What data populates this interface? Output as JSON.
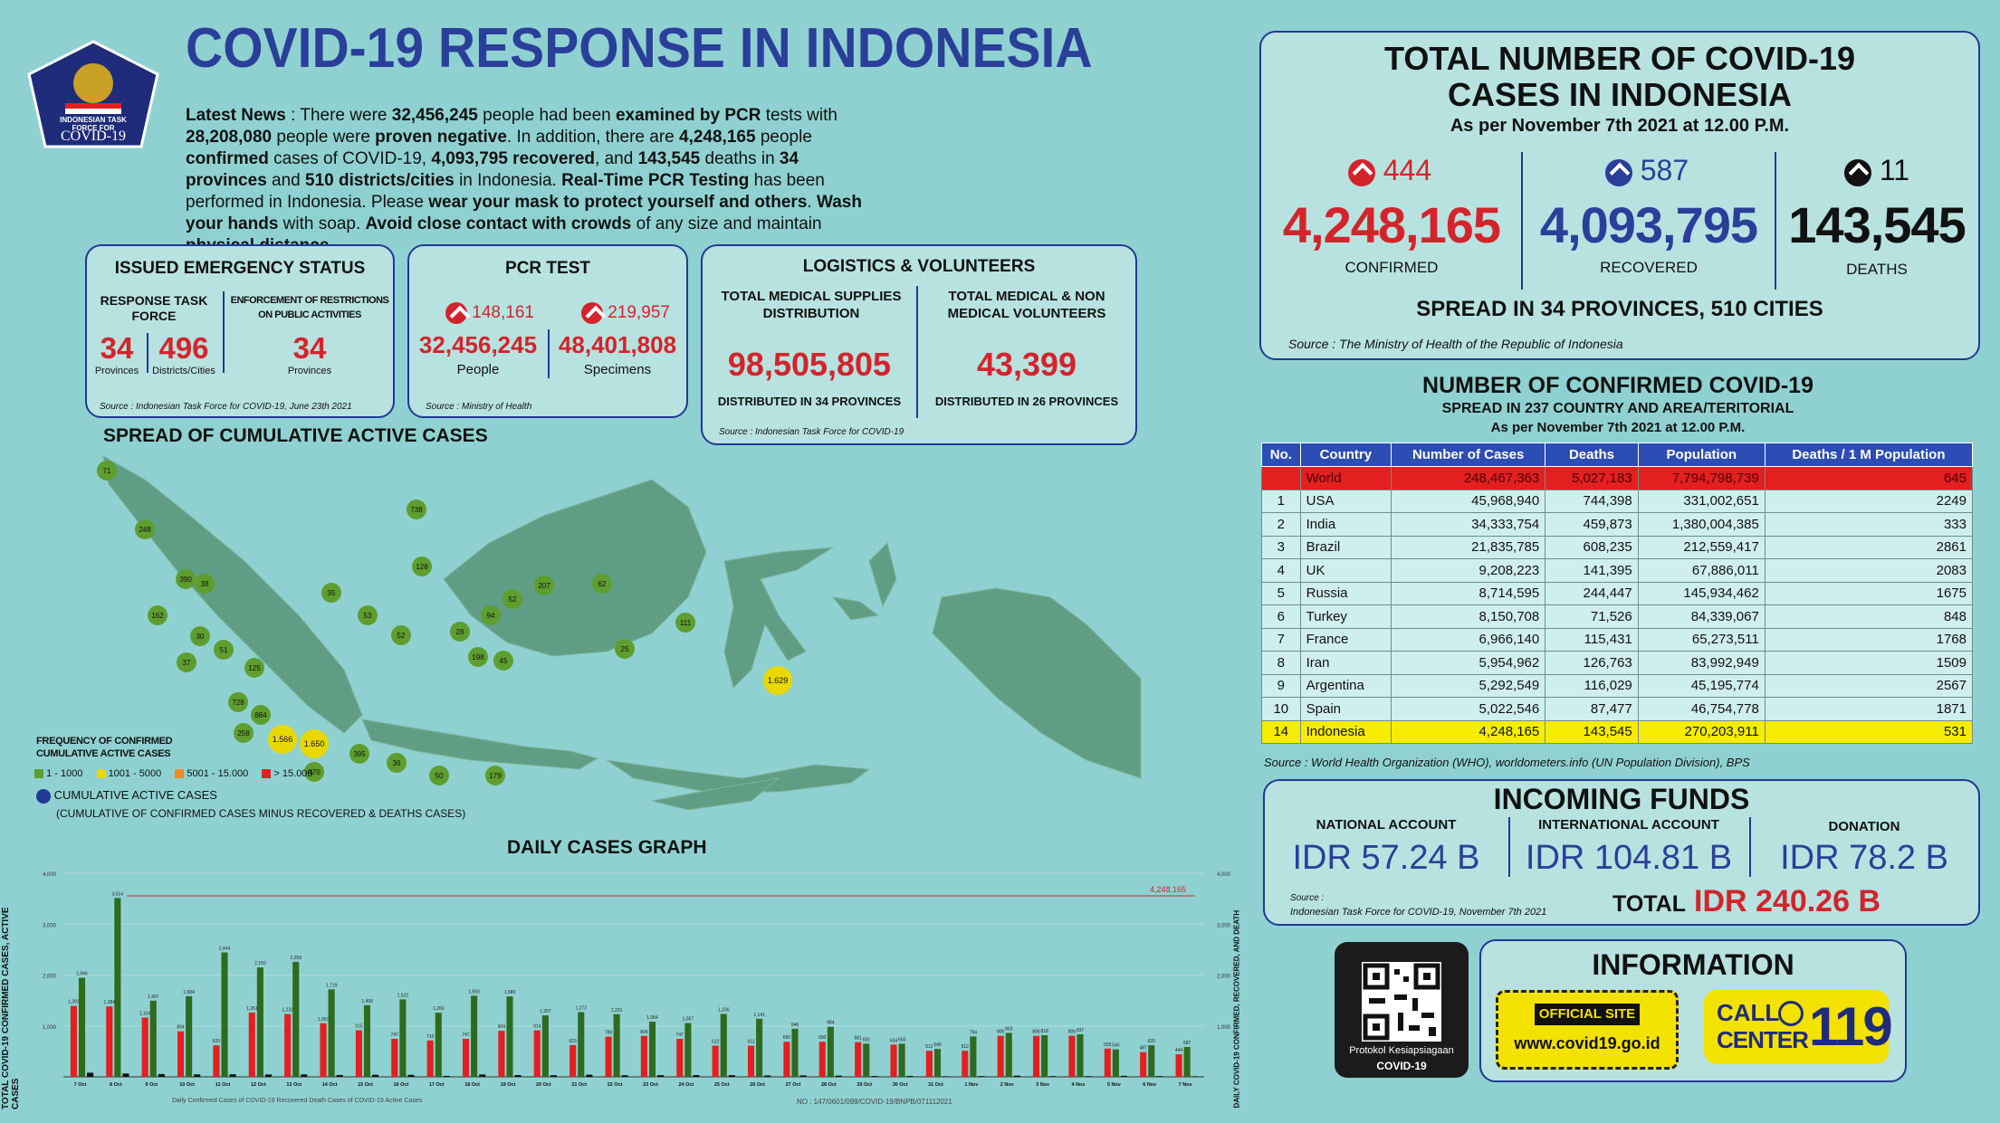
{
  "header": {
    "title": "COVID-19 RESPONSE IN INDONESIA",
    "logo_text_1": "INDONESIAN TASK FORCE FOR",
    "logo_text_2": "COVID-19"
  },
  "news": {
    "p1": "Latest News",
    "p2": " : There were ",
    "p3": "32,456,245",
    "p4": " people had been ",
    "p5": "examined by PCR",
    "p6": " tests with ",
    "p7": "28,208,080",
    "p8": " people were ",
    "p9": "proven negative",
    "p10": ". In addition, there are ",
    "p11": "4,248,165",
    "p12": " people ",
    "p13": "confirmed",
    "p14": " cases of COVID-19, ",
    "p15": "4,093,795 recovered",
    "p16": ", and ",
    "p17": "143,545",
    "p18": " deaths in ",
    "p19": "34 provinces",
    "p20": " and ",
    "p21": "510 districts/cities",
    "p22": " in Indonesia. ",
    "p23": "Real-Time PCR Testing",
    "p24": " has been performed in Indonesia. Please ",
    "p25": "wear your mask to protect yourself and others",
    "p26": ". ",
    "p27": "Wash your hands",
    "p28": " with soap. ",
    "p29": "Avoid close contact with crowds",
    "p30": " of any size and maintain ",
    "p31": "physical distance",
    "p32": "."
  },
  "emergency": {
    "title": "ISSUED EMERGENCY STATUS",
    "col1_head": "RESPONSE TASK FORCE",
    "col2_head": "ENFORCEMENT OF RESTRICTIONS ON PUBLIC ACTIVITIES",
    "v1": "34",
    "l1": "Provinces",
    "v2": "496",
    "l2": "Districts/Cities",
    "v3": "34",
    "l3": "Provinces",
    "source": "Source : Indonesian Task Force for COVID-19, June 23th 2021"
  },
  "pcr": {
    "title": "PCR TEST",
    "inc1": "148,161",
    "inc2": "219,957",
    "v1": "32,456,245",
    "l1": "People",
    "v2": "48,401,808",
    "l2": "Specimens",
    "source": "Source : Ministry of Health"
  },
  "logistics": {
    "title": "LOGISTICS & VOLUNTEERS",
    "h1": "TOTAL MEDICAL SUPPLIES DISTRIBUTION",
    "h2": "TOTAL MEDICAL & NON MEDICAL VOLUNTEERS",
    "v1": "98,505,805",
    "v2": "43,399",
    "d1": "DISTRIBUTED IN 34 PROVINCES",
    "d2": "DISTRIBUTED IN 26 PROVINCES",
    "source": "Source : Indonesian Task Force for COVID-19"
  },
  "map": {
    "title": "SPREAD OF CUMULATIVE ACTIVE CASES",
    "legend_title": "FREQUENCY OF CONFIRMED CUMULATIVE ACTIVE CASES",
    "legend": [
      "1 - 1000",
      "1001 - 5000",
      "5001 - 15.000",
      "> 15.000"
    ],
    "legend_colors": [
      "#5d9e2e",
      "#e8d800",
      "#f08a1c",
      "#e41f1f"
    ],
    "dot_legend": "CUMULATIVE ACTIVE CASES",
    "dot_legend_sub": "(CUMULATIVE OF CONFIRMED CASES MINUS RECOVERED & DEATHS CASES)",
    "points": [
      {
        "label": "71"
      },
      {
        "label": "248"
      },
      {
        "label": "390"
      },
      {
        "label": "38"
      },
      {
        "label": "162"
      },
      {
        "label": "30"
      },
      {
        "label": "125"
      },
      {
        "label": "51"
      },
      {
        "label": "37"
      },
      {
        "label": "728"
      },
      {
        "label": "884"
      },
      {
        "label": "258"
      },
      {
        "label": "1.566"
      },
      {
        "label": "1.650"
      },
      {
        "label": "470"
      },
      {
        "label": "395"
      },
      {
        "label": "36"
      },
      {
        "label": "50"
      },
      {
        "label": "179"
      },
      {
        "label": "738"
      },
      {
        "label": "128"
      },
      {
        "label": "35"
      },
      {
        "label": "53"
      },
      {
        "label": "52"
      },
      {
        "label": "52"
      },
      {
        "label": "207"
      },
      {
        "label": "62"
      },
      {
        "label": "94"
      },
      {
        "label": "28"
      },
      {
        "label": "198"
      },
      {
        "label": "45"
      },
      {
        "label": "25"
      },
      {
        "label": "111"
      },
      {
        "label": "1.629"
      }
    ]
  },
  "totals": {
    "title1": "TOTAL NUMBER OF COVID-19",
    "title2": "CASES IN INDONESIA",
    "asof": "As per November 7th 2021 at 12.00 P.M.",
    "inc_confirmed": "444",
    "inc_recovered": "587",
    "inc_deaths": "11",
    "confirmed": "4,248,165",
    "recovered": "4,093,795",
    "deaths": "143,545",
    "l_confirmed": "CONFIRMED",
    "l_recovered": "RECOVERED",
    "l_deaths": "DEATHS",
    "spread": "SPREAD IN 34 PROVINCES, 510 CITIES",
    "source": "Source : The Ministry of Health of the Republic of Indonesia"
  },
  "world": {
    "title": "NUMBER OF CONFIRMED COVID-19",
    "sub1": "SPREAD IN 237 COUNTRY AND AREA/TERITORIAL",
    "sub2": "As per November 7th 2021 at 12.00 P.M.",
    "headers": [
      "No.",
      "Country",
      "Number of Cases",
      "Deaths",
      "Population",
      "Deaths / 1 M Population"
    ],
    "rows": [
      [
        "",
        "World",
        "248,467,363",
        "5,027,183",
        "7,794,798,739",
        "645"
      ],
      [
        "1",
        "USA",
        "45,968,940",
        "744,398",
        "331,002,651",
        "2249"
      ],
      [
        "2",
        "India",
        "34,333,754",
        "459,873",
        "1,380,004,385",
        "333"
      ],
      [
        "3",
        "Brazil",
        "21,835,785",
        "608,235",
        "212,559,417",
        "2861"
      ],
      [
        "4",
        "UK",
        "9,208,223",
        "141,395",
        "67,886,011",
        "2083"
      ],
      [
        "5",
        "Russia",
        "8,714,595",
        "244,447",
        "145,934,462",
        "1675"
      ],
      [
        "6",
        "Turkey",
        "8,150,708",
        "71,526",
        "84,339,067",
        "848"
      ],
      [
        "7",
        "France",
        "6,966,140",
        "115,431",
        "65,273,511",
        "1768"
      ],
      [
        "8",
        "Iran",
        "5,954,962",
        "126,763",
        "83,992,949",
        "1509"
      ],
      [
        "9",
        "Argentina",
        "5,292,549",
        "116,029",
        "45,195,774",
        "2567"
      ],
      [
        "10",
        "Spain",
        "5,022,546",
        "87,477",
        "46,754,778",
        "1871"
      ],
      [
        "14",
        "Indonesia",
        "4,248,165",
        "143,545",
        "270,203,911",
        "531"
      ]
    ],
    "source": "Source : World Health Organization (WHO), worldometers.info (UN Population Division), BPS"
  },
  "funds": {
    "title": "INCOMING FUNDS",
    "h1": "NATIONAL ACCOUNT",
    "v1": "IDR 57.24 B",
    "h2": "INTERNATIONAL ACCOUNT",
    "v2": "IDR 104.81 B",
    "h3": "DONATION",
    "v3": "IDR 78.2 B",
    "total_label": "TOTAL",
    "total_value": "IDR 240.26 B",
    "source1": "Source :",
    "source2": "Indonesian Task Force for COVID-19, November 7th 2021"
  },
  "info": {
    "title": "INFORMATION",
    "qr_label1": "Protokol Kesiapsiagaan",
    "qr_label2": "COVID-19",
    "site_label": "OFFICIAL SITE",
    "site_url": "www.covid19.go.id",
    "call1": "CALL",
    "call2": "CENTER",
    "call_num": "119"
  },
  "chart_data": {
    "type": "bar",
    "title": "DAILY CASES GRAPH",
    "ylabel": "TOTAL COVID-19 CONFIRMED CASES, ACTIVE CASES",
    "ylabel_right": "DAILY COVID-19 CONFIRMED, RECOVERED, AND DEATH",
    "reference_line_label": "4,248,165",
    "categories": [
      "7 Oct",
      "8 Oct",
      "9 Oct",
      "10 Oct",
      "11 Oct",
      "12 Oct",
      "13 Oct",
      "14 Oct",
      "15 Oct",
      "16 Oct",
      "17 Oct",
      "18 Oct",
      "19 Oct",
      "20 Oct",
      "21 Oct",
      "22 Oct",
      "23 Oct",
      "24 Oct",
      "25 Oct",
      "26 Oct",
      "27 Oct",
      "28 Oct",
      "29 Oct",
      "30 Oct",
      "31 Oct",
      "1 Nov",
      "2 Nov",
      "3 Nov",
      "4 Nov",
      "5 Nov",
      "6 Nov",
      "7 Nov"
    ],
    "series": [
      {
        "name": "Daily Confirmed Cases of COVID-19",
        "color": "#e41f1f",
        "values": [
          1393,
          1384,
          1164,
          894,
          620,
          1261,
          1233,
          1053,
          915,
          747,
          715,
          747,
          904,
          914,
          623,
          789,
          804,
          747,
          612,
          611,
          690,
          690,
          681,
          634,
          512,
          512,
          806,
          806,
          806,
          555,
          487,
          444
        ]
      },
      {
        "name": "Recovered",
        "color": "#2e6b1f",
        "values": [
          1946,
          3514,
          1497,
          1584,
          2444,
          2150,
          2259,
          1719,
          1408,
          1522,
          1260,
          1593,
          1580,
          1207,
          1272,
          1231,
          1084,
          1057,
          1236,
          1141,
          946,
          984,
          650,
          650,
          549,
          794,
          863,
          818,
          837,
          540,
          620,
          587
        ]
      },
      {
        "name": "Death Cases of COVID-19",
        "color": "#111111",
        "values": [
          81,
          66,
          55,
          48,
          51,
          47,
          48,
          37,
          41,
          40,
          19,
          47,
          35,
          32,
          43,
          32,
          34,
          34,
          34,
          27,
          29,
          24,
          17,
          17,
          11,
          15,
          24,
          15,
          14,
          21,
          15,
          11
        ]
      }
    ],
    "ylim": [
      0,
      4000
    ],
    "yticks": [
      "1,000",
      "2,000",
      "3,000",
      "4,000"
    ],
    "legend_text": "Daily Confirmed Cases of COVID-19  Recovered  Death Cases of COVID-19  Active Cases",
    "footer_code": "NO : 147/0601/099/COVID-19/BNPB/071112021"
  }
}
